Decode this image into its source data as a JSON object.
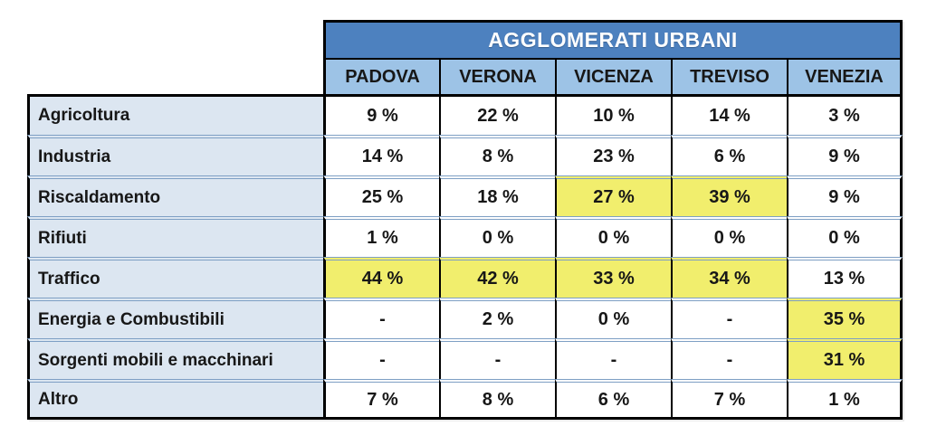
{
  "table": {
    "title": "AGGLOMERATI URBANI",
    "columns": [
      "PADOVA",
      "VERONA",
      "VICENZA",
      "TREVISO",
      "VENEZIA"
    ],
    "rows": [
      {
        "label": "Agricoltura",
        "cells": [
          {
            "v": "9 %"
          },
          {
            "v": "22 %"
          },
          {
            "v": "10 %"
          },
          {
            "v": "14 %"
          },
          {
            "v": "3 %"
          }
        ]
      },
      {
        "label": "Industria",
        "cells": [
          {
            "v": "14 %"
          },
          {
            "v": "8 %"
          },
          {
            "v": "23 %"
          },
          {
            "v": "6 %"
          },
          {
            "v": "9 %"
          }
        ]
      },
      {
        "label": "Riscaldamento",
        "cells": [
          {
            "v": "25 %"
          },
          {
            "v": "18 %"
          },
          {
            "v": "27 %",
            "hl": true
          },
          {
            "v": "39 %",
            "hl": true
          },
          {
            "v": "9 %"
          }
        ]
      },
      {
        "label": "Rifiuti",
        "cells": [
          {
            "v": "1 %"
          },
          {
            "v": "0 %"
          },
          {
            "v": "0 %"
          },
          {
            "v": "0 %"
          },
          {
            "v": "0 %"
          }
        ]
      },
      {
        "label": "Traffico",
        "cells": [
          {
            "v": "44 %",
            "hl": true
          },
          {
            "v": "42 %",
            "hl": true
          },
          {
            "v": "33 %",
            "hl": true
          },
          {
            "v": "34 %",
            "hl": true
          },
          {
            "v": "13 %"
          }
        ]
      },
      {
        "label": "Energia e Combustibili",
        "cells": [
          {
            "v": "-"
          },
          {
            "v": "2 %"
          },
          {
            "v": "0 %"
          },
          {
            "v": "-"
          },
          {
            "v": "35 %",
            "hl": true
          }
        ]
      },
      {
        "label": "Sorgenti mobili e macchinari",
        "cells": [
          {
            "v": "-"
          },
          {
            "v": "-"
          },
          {
            "v": "-"
          },
          {
            "v": "-"
          },
          {
            "v": "31 %",
            "hl": true
          }
        ]
      },
      {
        "label": "Altro",
        "cells": [
          {
            "v": "7 %"
          },
          {
            "v": "8 %"
          },
          {
            "v": "6 %"
          },
          {
            "v": "7 %"
          },
          {
            "v": "1 %"
          }
        ]
      }
    ],
    "colors": {
      "title_bg": "#4d81bf",
      "title_text": "#ffffff",
      "city_header_bg": "#9dc3e6",
      "row_label_bg": "#dce6f1",
      "highlight_bg": "#f1ee6d",
      "separator_line": "#7e9fc4",
      "border": "#000000"
    }
  },
  "chart_data": {
    "type": "table",
    "title": "AGGLOMERATI URBANI",
    "columns": [
      "PADOVA",
      "VERONA",
      "VICENZA",
      "TREVISO",
      "VENEZIA"
    ],
    "row_labels": [
      "Agricoltura",
      "Industria",
      "Riscaldamento",
      "Rifiuti",
      "Traffico",
      "Energia e Combustibili",
      "Sorgenti mobili e macchinari",
      "Altro"
    ],
    "values_pct": [
      [
        9,
        22,
        10,
        14,
        3
      ],
      [
        14,
        8,
        23,
        6,
        9
      ],
      [
        25,
        18,
        27,
        39,
        9
      ],
      [
        1,
        0,
        0,
        0,
        0
      ],
      [
        44,
        42,
        33,
        34,
        13
      ],
      [
        null,
        2,
        0,
        null,
        35
      ],
      [
        null,
        null,
        null,
        null,
        31
      ],
      [
        7,
        8,
        6,
        7,
        1
      ]
    ],
    "missing_value_marker": "-",
    "highlighted_cells": [
      {
        "row": "Riscaldamento",
        "column": "VICENZA",
        "value": 27
      },
      {
        "row": "Riscaldamento",
        "column": "TREVISO",
        "value": 39
      },
      {
        "row": "Traffico",
        "column": "PADOVA",
        "value": 44
      },
      {
        "row": "Traffico",
        "column": "VERONA",
        "value": 42
      },
      {
        "row": "Traffico",
        "column": "VICENZA",
        "value": 33
      },
      {
        "row": "Traffico",
        "column": "TREVISO",
        "value": 34
      },
      {
        "row": "Energia e Combustibili",
        "column": "VENEZIA",
        "value": 35
      },
      {
        "row": "Sorgenti mobili e macchinari",
        "column": "VENEZIA",
        "value": 31
      }
    ]
  }
}
